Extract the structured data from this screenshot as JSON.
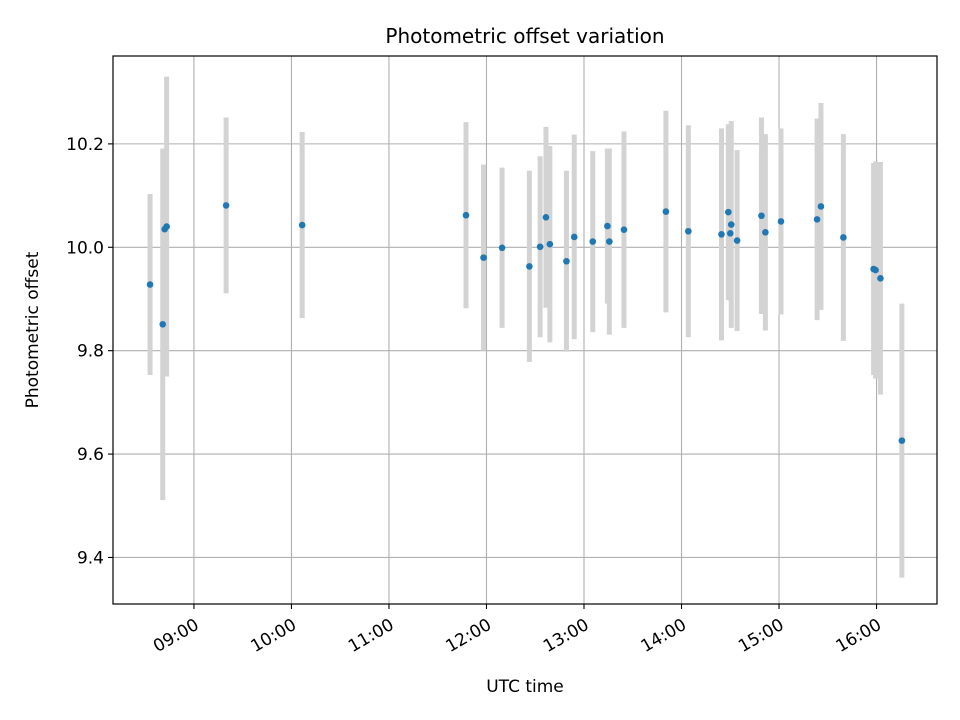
{
  "chart_data": {
    "type": "scatter",
    "title": "Photometric offset variation",
    "xlabel": "UTC time",
    "ylabel": "Photometric offset",
    "xlim_hours": [
      8.17,
      16.62
    ],
    "ylim": [
      9.31,
      10.37
    ],
    "grid": true,
    "x_ticks": [
      {
        "hour": 9,
        "label": "09:00"
      },
      {
        "hour": 10,
        "label": "10:00"
      },
      {
        "hour": 11,
        "label": "11:00"
      },
      {
        "hour": 12,
        "label": "12:00"
      },
      {
        "hour": 13,
        "label": "13:00"
      },
      {
        "hour": 14,
        "label": "14:00"
      },
      {
        "hour": 15,
        "label": "15:00"
      },
      {
        "hour": 16,
        "label": "16:00"
      }
    ],
    "y_ticks": [
      {
        "value": 9.4,
        "label": "9.4"
      },
      {
        "value": 9.6,
        "label": "9.6"
      },
      {
        "value": 9.8,
        "label": "9.8"
      },
      {
        "value": 10.0,
        "label": "10.0"
      },
      {
        "value": 10.2,
        "label": "10.2"
      }
    ],
    "marker_color": "#1f77b4",
    "errorbar_color": "#d3d3d3",
    "points": [
      {
        "t": 8.55,
        "y": 9.928,
        "err": 0.175
      },
      {
        "t": 8.68,
        "y": 9.851,
        "err": 0.34
      },
      {
        "t": 8.7,
        "y": 10.035,
        "err": 0.155
      },
      {
        "t": 8.72,
        "y": 10.04,
        "err": 0.29
      },
      {
        "t": 9.33,
        "y": 10.081,
        "err": 0.17
      },
      {
        "t": 10.11,
        "y": 10.043,
        "err": 0.18
      },
      {
        "t": 11.79,
        "y": 10.062,
        "err": 0.18
      },
      {
        "t": 11.97,
        "y": 9.98,
        "err": 0.18
      },
      {
        "t": 12.16,
        "y": 9.999,
        "err": 0.155
      },
      {
        "t": 12.44,
        "y": 9.963,
        "err": 0.185
      },
      {
        "t": 12.55,
        "y": 10.001,
        "err": 0.175
      },
      {
        "t": 12.61,
        "y": 10.058,
        "err": 0.175
      },
      {
        "t": 12.65,
        "y": 10.006,
        "err": 0.19
      },
      {
        "t": 12.82,
        "y": 9.973,
        "err": 0.175
      },
      {
        "t": 12.9,
        "y": 10.02,
        "err": 0.198
      },
      {
        "t": 13.09,
        "y": 10.011,
        "err": 0.175
      },
      {
        "t": 13.24,
        "y": 10.041,
        "err": 0.15
      },
      {
        "t": 13.26,
        "y": 10.011,
        "err": 0.18
      },
      {
        "t": 13.41,
        "y": 10.034,
        "err": 0.19
      },
      {
        "t": 13.84,
        "y": 10.069,
        "err": 0.195
      },
      {
        "t": 14.07,
        "y": 10.031,
        "err": 0.205
      },
      {
        "t": 14.41,
        "y": 10.025,
        "err": 0.205
      },
      {
        "t": 14.48,
        "y": 10.068,
        "err": 0.17
      },
      {
        "t": 14.5,
        "y": 10.027,
        "err": 0.13
      },
      {
        "t": 14.51,
        "y": 10.044,
        "err": 0.2
      },
      {
        "t": 14.57,
        "y": 10.013,
        "err": 0.175
      },
      {
        "t": 14.82,
        "y": 10.061,
        "err": 0.19
      },
      {
        "t": 14.86,
        "y": 10.029,
        "err": 0.19
      },
      {
        "t": 15.02,
        "y": 10.05,
        "err": 0.18
      },
      {
        "t": 15.39,
        "y": 10.054,
        "err": 0.195
      },
      {
        "t": 15.43,
        "y": 10.079,
        "err": 0.2
      },
      {
        "t": 15.66,
        "y": 10.019,
        "err": 0.2
      },
      {
        "t": 15.97,
        "y": 9.958,
        "err": 0.205
      },
      {
        "t": 15.99,
        "y": 9.956,
        "err": 0.21
      },
      {
        "t": 16.04,
        "y": 9.94,
        "err": 0.225
      },
      {
        "t": 16.26,
        "y": 9.626,
        "err": 0.265
      }
    ]
  }
}
